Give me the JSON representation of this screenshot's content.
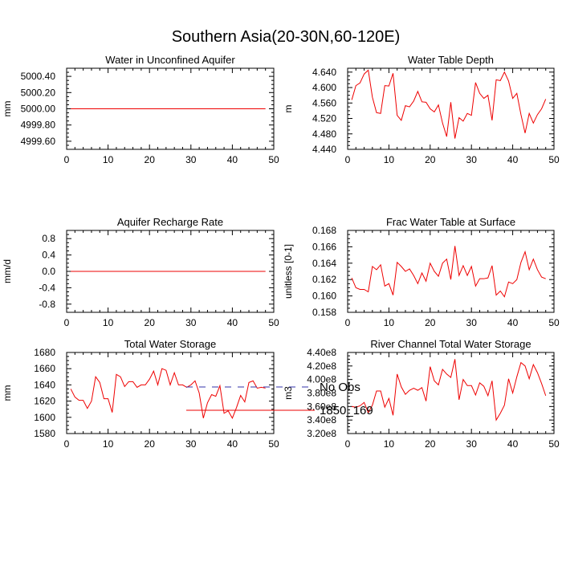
{
  "figure_title": "Southern Asia(20-30N,60-120E)",
  "legend": {
    "entries": [
      {
        "label": "No Obs",
        "color": "#3333aa",
        "dashed": true
      },
      {
        "label": "1850_169",
        "color": "#ee0000",
        "dashed": false
      }
    ]
  },
  "chart_data": [
    {
      "type": "line",
      "title": "Water in Unconfined Aquifer",
      "ylabel": "mm",
      "xlim": [
        0,
        50
      ],
      "xticks": [
        0,
        10,
        20,
        30,
        40,
        50
      ],
      "ylim": [
        4999.5,
        5000.5
      ],
      "yticks": [
        4999.6,
        4999.8,
        5000.0,
        5000.2,
        5000.4
      ],
      "ytick_labels": [
        "4999.60",
        "4999.80",
        "5000.00",
        "5000.20",
        "5000.40"
      ],
      "series": [
        {
          "color": "#ee0000",
          "x": [
            1,
            48
          ],
          "y": [
            5000.0,
            5000.0
          ]
        }
      ]
    },
    {
      "type": "line",
      "title": "Water Table Depth",
      "ylabel": "m",
      "xlim": [
        0,
        50
      ],
      "xticks": [
        0,
        10,
        20,
        30,
        40,
        50
      ],
      "ylim": [
        4.44,
        4.65
      ],
      "yticks": [
        4.44,
        4.48,
        4.52,
        4.56,
        4.6,
        4.64
      ],
      "ytick_labels": [
        "4.440",
        "4.480",
        "4.520",
        "4.560",
        "4.600",
        "4.640"
      ],
      "series": [
        {
          "color": "#ee0000",
          "x": [
            1,
            2,
            3,
            4,
            5,
            6,
            7,
            8,
            9,
            10,
            11,
            12,
            13,
            14,
            15,
            16,
            17,
            18,
            19,
            20,
            21,
            22,
            23,
            24,
            25,
            26,
            27,
            28,
            29,
            30,
            31,
            32,
            33,
            34,
            35,
            36,
            37,
            38,
            39,
            40,
            41,
            42,
            43,
            44,
            45,
            46,
            47,
            48
          ],
          "y": [
            4.568,
            4.605,
            4.612,
            4.635,
            4.645,
            4.575,
            4.535,
            4.533,
            4.605,
            4.604,
            4.637,
            4.528,
            4.515,
            4.553,
            4.55,
            4.565,
            4.59,
            4.563,
            4.562,
            4.545,
            4.537,
            4.555,
            4.508,
            4.473,
            4.562,
            4.468,
            4.522,
            4.513,
            4.533,
            4.528,
            4.613,
            4.585,
            4.572,
            4.58,
            4.515,
            4.62,
            4.618,
            4.64,
            4.617,
            4.572,
            4.585,
            4.53,
            4.482,
            4.533,
            4.508,
            4.53,
            4.545,
            4.57
          ]
        }
      ]
    },
    {
      "type": "line",
      "title": "Aquifer Recharge Rate",
      "ylabel": "mm/d",
      "xlim": [
        0,
        50
      ],
      "xticks": [
        0,
        10,
        20,
        30,
        40,
        50
      ],
      "ylim": [
        -1.0,
        1.0
      ],
      "yticks": [
        -0.8,
        -0.4,
        0.0,
        0.4,
        0.8
      ],
      "ytick_labels": [
        "-0.8",
        "-0.4",
        "0.0",
        "0.4",
        "0.8"
      ],
      "series": [
        {
          "color": "#ee0000",
          "x": [
            1,
            48
          ],
          "y": [
            0.0,
            0.0
          ]
        }
      ]
    },
    {
      "type": "line",
      "title": "Frac Water Table at Surface",
      "ylabel": "unitless [0-1]",
      "xlim": [
        0,
        50
      ],
      "xticks": [
        0,
        10,
        20,
        30,
        40,
        50
      ],
      "ylim": [
        0.158,
        0.168
      ],
      "yticks": [
        0.158,
        0.16,
        0.162,
        0.164,
        0.166,
        0.168
      ],
      "ytick_labels": [
        "0.158",
        "0.160",
        "0.162",
        "0.164",
        "0.166",
        "0.168"
      ],
      "series": [
        {
          "color": "#ee0000",
          "x": [
            1,
            2,
            3,
            4,
            5,
            6,
            7,
            8,
            9,
            10,
            11,
            12,
            13,
            14,
            15,
            16,
            17,
            18,
            19,
            20,
            21,
            22,
            23,
            24,
            25,
            26,
            27,
            28,
            29,
            30,
            31,
            32,
            33,
            34,
            35,
            36,
            37,
            38,
            39,
            40,
            41,
            42,
            43,
            44,
            45,
            46,
            47,
            48
          ],
          "y": [
            0.1622,
            0.161,
            0.1608,
            0.1608,
            0.1605,
            0.1636,
            0.1632,
            0.1638,
            0.1612,
            0.1615,
            0.1601,
            0.1641,
            0.1636,
            0.163,
            0.1633,
            0.1625,
            0.1615,
            0.1628,
            0.1618,
            0.164,
            0.163,
            0.1624,
            0.164,
            0.1645,
            0.162,
            0.1661,
            0.1625,
            0.1637,
            0.1625,
            0.1636,
            0.1612,
            0.1621,
            0.1621,
            0.1622,
            0.1637,
            0.1601,
            0.1606,
            0.1599,
            0.1617,
            0.1615,
            0.162,
            0.1641,
            0.1654,
            0.1632,
            0.1645,
            0.1632,
            0.1623,
            0.1621
          ]
        }
      ]
    },
    {
      "type": "line",
      "title": "Total Water Storage",
      "ylabel": "mm",
      "xlim": [
        0,
        50
      ],
      "xticks": [
        0,
        10,
        20,
        30,
        40,
        50
      ],
      "ylim": [
        1580,
        1680
      ],
      "yticks": [
        1580,
        1600,
        1620,
        1640,
        1660,
        1680
      ],
      "ytick_labels": [
        "1580",
        "1600",
        "1620",
        "1640",
        "1660",
        "1680"
      ],
      "series": [
        {
          "color": "#ee0000",
          "x": [
            1,
            2,
            3,
            4,
            5,
            6,
            7,
            8,
            9,
            10,
            11,
            12,
            13,
            14,
            15,
            16,
            17,
            18,
            19,
            20,
            21,
            22,
            23,
            24,
            25,
            26,
            27,
            28,
            29,
            30,
            31,
            32,
            33,
            34,
            35,
            36,
            37,
            38,
            39,
            40,
            41,
            42,
            43,
            44,
            45,
            46,
            47,
            48
          ],
          "y": [
            1635,
            1625,
            1621,
            1621,
            1611,
            1620,
            1650,
            1643,
            1623,
            1623,
            1606,
            1653,
            1650,
            1638,
            1644,
            1644,
            1637,
            1640,
            1640,
            1647,
            1657,
            1640,
            1660,
            1658,
            1640,
            1655,
            1640,
            1640,
            1637,
            1640,
            1645,
            1630,
            1599,
            1618,
            1628,
            1626,
            1639,
            1605,
            1608,
            1599,
            1612,
            1627,
            1619,
            1643,
            1645,
            1636,
            1637,
            1636
          ]
        }
      ]
    },
    {
      "type": "line",
      "title": "River Channel Total Water Storage",
      "ylabel": "m3",
      "xlim": [
        0,
        50
      ],
      "xticks": [
        0,
        10,
        20,
        30,
        40,
        50
      ],
      "ylim": [
        320000000,
        440000000
      ],
      "yticks": [
        320000000,
        340000000,
        360000000,
        380000000,
        400000000,
        420000000,
        440000000
      ],
      "ytick_labels": [
        "3.20e8",
        "3.40e8",
        "3.60e8",
        "3.80e8",
        "4.00e8",
        "4.20e8",
        "4.40e8"
      ],
      "series": [
        {
          "color": "#ee0000",
          "x": [
            1,
            2,
            3,
            4,
            5,
            6,
            7,
            8,
            9,
            10,
            11,
            12,
            13,
            14,
            15,
            16,
            17,
            18,
            19,
            20,
            21,
            22,
            23,
            24,
            25,
            26,
            27,
            28,
            29,
            30,
            31,
            32,
            33,
            34,
            35,
            36,
            37,
            38,
            39,
            40,
            41,
            42,
            43,
            44,
            45,
            46,
            47,
            48
          ],
          "y": [
            360000000,
            359000000,
            361000000,
            366000000,
            351000000,
            362000000,
            383000000,
            383000000,
            359000000,
            372000000,
            347000000,
            408000000,
            389000000,
            378000000,
            384000000,
            387000000,
            384000000,
            388000000,
            368000000,
            419000000,
            398000000,
            392000000,
            415000000,
            408000000,
            403000000,
            430000000,
            370000000,
            400000000,
            391000000,
            391000000,
            377000000,
            395000000,
            390000000,
            376000000,
            398000000,
            340000000,
            350000000,
            362000000,
            401000000,
            380000000,
            404000000,
            425000000,
            420000000,
            401000000,
            422000000,
            410000000,
            394000000,
            376000000
          ]
        }
      ]
    }
  ]
}
